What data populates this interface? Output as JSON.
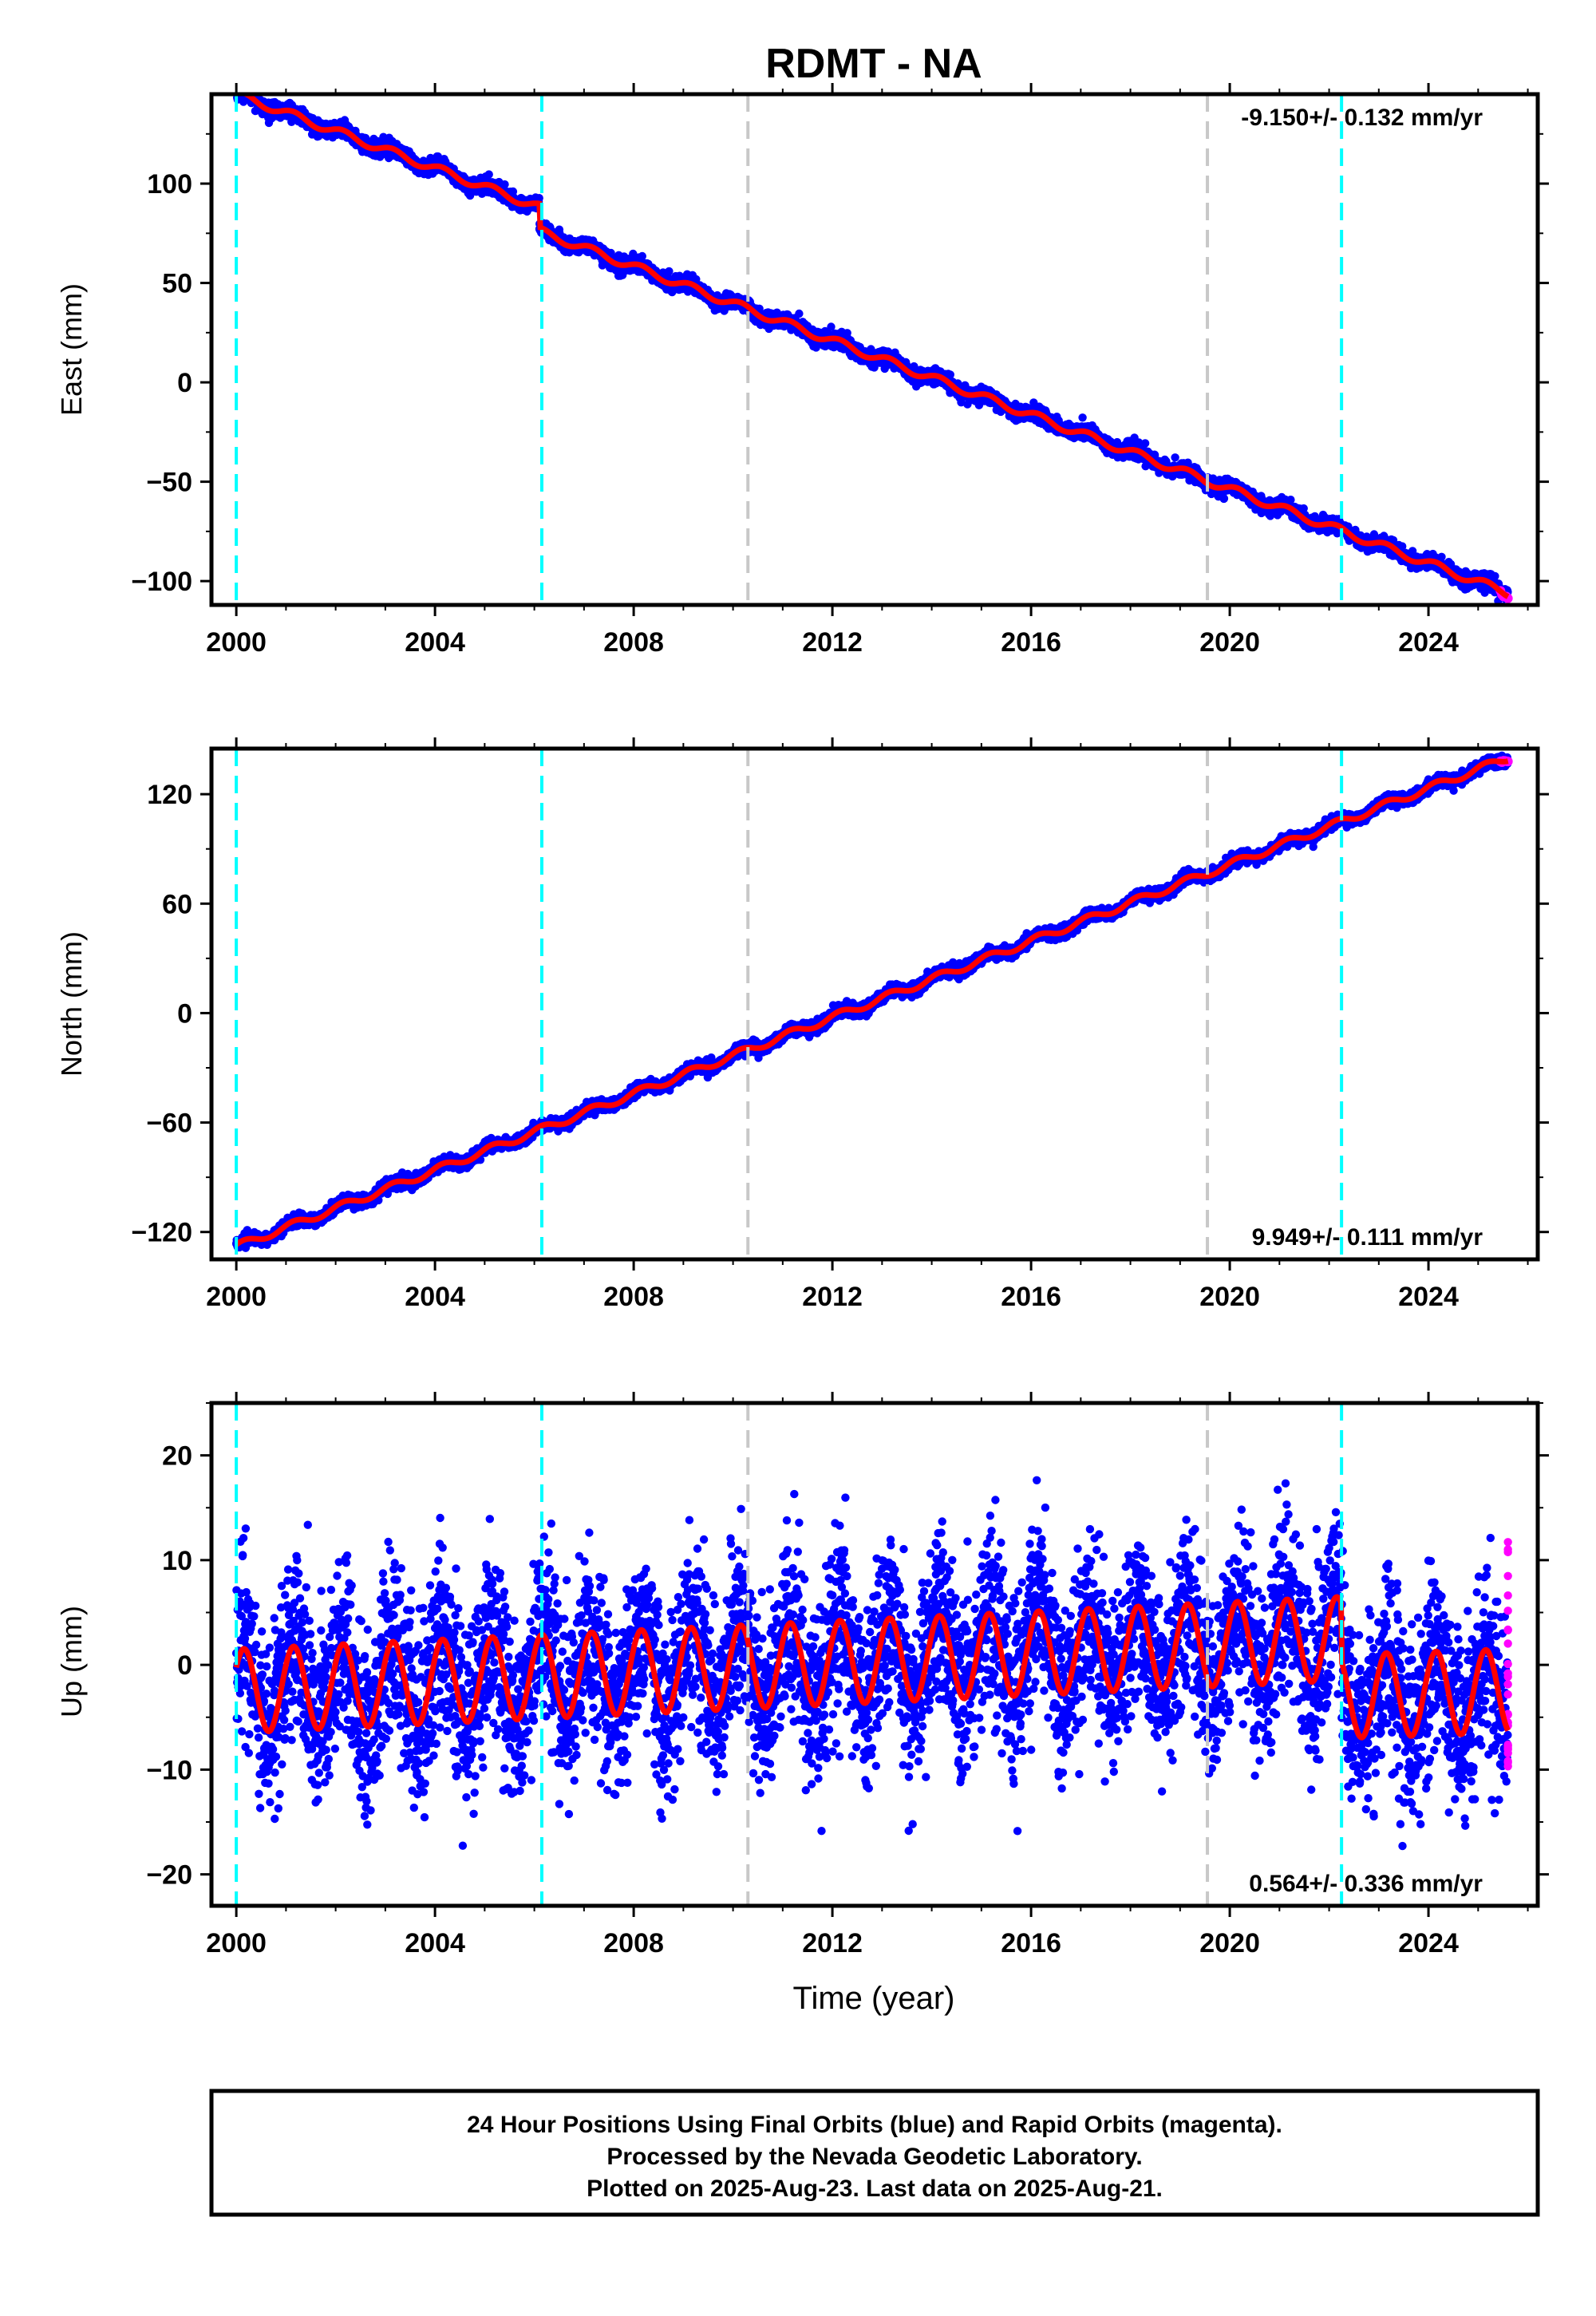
{
  "title": "RDMT - NA",
  "colors": {
    "final_orbits": "#0000ff",
    "rapid_orbits": "#ff00ff",
    "model": "#ff0000",
    "equipment_change": "#00ffff",
    "other_event": "#c8c8c8"
  },
  "chart_data": [
    {
      "type": "scatter",
      "ylabel": "East (mm)",
      "xlim": [
        1999.5,
        2026.2
      ],
      "ylim": [
        -112,
        145
      ],
      "yticks": [
        -100,
        -50,
        0,
        50,
        100
      ],
      "xticks": [
        2000,
        2004,
        2008,
        2012,
        2016,
        2020,
        2024
      ],
      "rate": "-9.150+/- 0.132 mm/yr",
      "rate_position": "top-right",
      "series": [
        {
          "trend": {
            "start": [
              2000.0,
              133
            ],
            "end": [
              2025.6,
              -106
            ]
          },
          "offsets": [
            {
              "x": 2006.1,
              "dy": -12
            }
          ],
          "seasonal_amplitude_mm": 2.0,
          "noise_mm": 1.8
        }
      ],
      "event_lines": {
        "cyan": [
          2000.0,
          2006.15,
          2022.25
        ],
        "gray": [
          2010.3,
          2019.55
        ]
      }
    },
    {
      "type": "scatter",
      "ylabel": "North (mm)",
      "xlim": [
        1999.5,
        2026.2
      ],
      "ylim": [
        -135,
        145
      ],
      "yticks": [
        -120,
        -60,
        0,
        60,
        120
      ],
      "xticks": [
        2000,
        2004,
        2008,
        2012,
        2016,
        2020,
        2024
      ],
      "rate": "9.949+/- 0.111 mm/yr",
      "rate_position": "bottom-right",
      "series": [
        {
          "trend": {
            "start": [
              2000.0,
              -128
            ],
            "end": [
              2025.6,
              140
            ]
          },
          "seasonal_amplitude_mm": 2.0,
          "noise_mm": 1.6
        }
      ],
      "event_lines": {
        "cyan": [
          2000.0,
          2006.15,
          2022.25
        ],
        "gray": [
          2010.3,
          2019.55
        ]
      }
    },
    {
      "type": "scatter",
      "ylabel": "Up (mm)",
      "xlabel": "Time (year)",
      "xlim": [
        1999.5,
        2026.2
      ],
      "ylim": [
        -23,
        25
      ],
      "yticks": [
        -20,
        -10,
        0,
        10,
        20
      ],
      "xticks": [
        2000,
        2004,
        2008,
        2012,
        2016,
        2020,
        2024
      ],
      "rate": "0.564+/- 0.336 mm/yr",
      "rate_position": "bottom-right",
      "series": [
        {
          "segments": [
            {
              "from": 2000.0,
              "to": 2022.25,
              "start_mean": -2.5,
              "end_mean": 2.5
            },
            {
              "from": 2022.25,
              "to": 2025.6,
              "start_mean": -3.0,
              "end_mean": -2.5
            }
          ],
          "seasonal_amplitude_mm": 4.0,
          "noise_mm": 4.2
        }
      ],
      "rapid_points": {
        "x": 2025.6,
        "y_range": [
          -10,
          12
        ]
      },
      "event_lines": {
        "cyan": [
          2000.0,
          2006.15,
          2022.25
        ],
        "gray": [
          2010.3,
          2019.55
        ]
      }
    }
  ],
  "notes": [
    "24 Hour Positions Using Final Orbits (blue) and Rapid Orbits (magenta).",
    "Processed by the Nevada Geodetic Laboratory.",
    "Plotted on 2025-Aug-23. Last data on 2025-Aug-21."
  ]
}
